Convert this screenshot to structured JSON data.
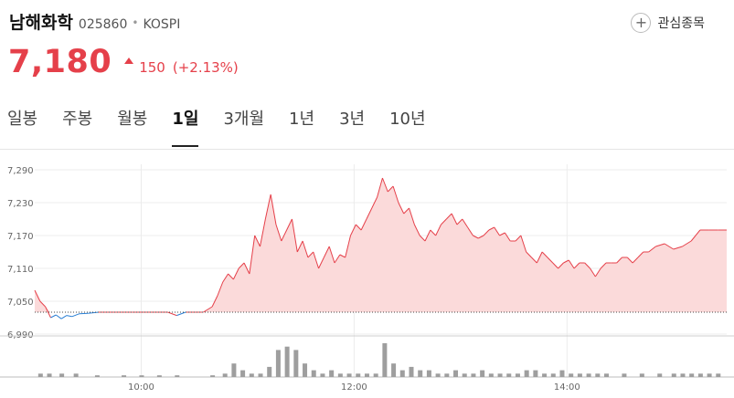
{
  "stock": {
    "name": "남해화학",
    "code": "025860",
    "exchange": "KOSPI",
    "watch_label": "관심종목",
    "price": "7,180",
    "change": "150",
    "change_pct": "(+2.13%)"
  },
  "tabs": [
    "일봉",
    "주봉",
    "월봉",
    "1일",
    "3개월",
    "1년",
    "3년",
    "10년"
  ],
  "active_tab": "1일",
  "colors": {
    "up": "#e5404a",
    "down": "#2a7fd4",
    "area_fill": "#fbdada",
    "volume": "#9e9e9e"
  },
  "chart_data": {
    "type": "area",
    "x_range": [
      "09:00",
      "15:30"
    ],
    "ylim": [
      6990,
      7290
    ],
    "y_ticks": [
      7290,
      7230,
      7170,
      7110,
      7050,
      6990
    ],
    "x_ticks": [
      "10:00",
      "12:00",
      "14:00"
    ],
    "reference_price": 7030,
    "grid": true,
    "series": [
      {
        "points": [
          [
            "09:00",
            7070
          ],
          [
            "09:03",
            7050
          ],
          [
            "09:06",
            7040
          ],
          [
            "09:09",
            7020
          ],
          [
            "09:12",
            7025
          ],
          [
            "09:15",
            7018
          ],
          [
            "09:18",
            7024
          ],
          [
            "09:21",
            7022
          ],
          [
            "09:25",
            7027
          ],
          [
            "09:30",
            7028
          ],
          [
            "09:36",
            7030
          ],
          [
            "09:45",
            7030
          ],
          [
            "09:55",
            7030
          ],
          [
            "10:05",
            7030
          ],
          [
            "10:15",
            7030
          ],
          [
            "10:20",
            7024
          ],
          [
            "10:25",
            7030
          ],
          [
            "10:30",
            7030
          ],
          [
            "10:35",
            7030
          ],
          [
            "10:40",
            7040
          ],
          [
            "10:43",
            7060
          ],
          [
            "10:46",
            7085
          ],
          [
            "10:49",
            7100
          ],
          [
            "10:52",
            7090
          ],
          [
            "10:55",
            7110
          ],
          [
            "10:58",
            7120
          ],
          [
            "11:01",
            7100
          ],
          [
            "11:04",
            7170
          ],
          [
            "11:07",
            7150
          ],
          [
            "11:10",
            7200
          ],
          [
            "11:13",
            7245
          ],
          [
            "11:16",
            7190
          ],
          [
            "11:19",
            7160
          ],
          [
            "11:22",
            7180
          ],
          [
            "11:25",
            7200
          ],
          [
            "11:28",
            7140
          ],
          [
            "11:31",
            7160
          ],
          [
            "11:34",
            7130
          ],
          [
            "11:37",
            7140
          ],
          [
            "11:40",
            7110
          ],
          [
            "11:43",
            7130
          ],
          [
            "11:46",
            7150
          ],
          [
            "11:49",
            7120
          ],
          [
            "11:52",
            7135
          ],
          [
            "11:55",
            7130
          ],
          [
            "11:58",
            7170
          ],
          [
            "12:01",
            7190
          ],
          [
            "12:04",
            7180
          ],
          [
            "12:07",
            7200
          ],
          [
            "12:10",
            7220
          ],
          [
            "12:13",
            7240
          ],
          [
            "12:16",
            7275
          ],
          [
            "12:19",
            7250
          ],
          [
            "12:22",
            7260
          ],
          [
            "12:25",
            7230
          ],
          [
            "12:28",
            7210
          ],
          [
            "12:31",
            7220
          ],
          [
            "12:34",
            7190
          ],
          [
            "12:37",
            7170
          ],
          [
            "12:40",
            7160
          ],
          [
            "12:43",
            7180
          ],
          [
            "12:46",
            7170
          ],
          [
            "12:49",
            7190
          ],
          [
            "12:52",
            7200
          ],
          [
            "12:55",
            7210
          ],
          [
            "12:58",
            7190
          ],
          [
            "13:01",
            7200
          ],
          [
            "13:04",
            7185
          ],
          [
            "13:07",
            7170
          ],
          [
            "13:10",
            7165
          ],
          [
            "13:13",
            7170
          ],
          [
            "13:16",
            7180
          ],
          [
            "13:19",
            7185
          ],
          [
            "13:22",
            7170
          ],
          [
            "13:25",
            7175
          ],
          [
            "13:28",
            7160
          ],
          [
            "13:31",
            7160
          ],
          [
            "13:34",
            7170
          ],
          [
            "13:37",
            7140
          ],
          [
            "13:40",
            7130
          ],
          [
            "13:43",
            7120
          ],
          [
            "13:46",
            7140
          ],
          [
            "13:49",
            7130
          ],
          [
            "13:52",
            7120
          ],
          [
            "13:55",
            7110
          ],
          [
            "13:58",
            7120
          ],
          [
            "14:01",
            7125
          ],
          [
            "14:04",
            7110
          ],
          [
            "14:07",
            7120
          ],
          [
            "14:10",
            7120
          ],
          [
            "14:13",
            7110
          ],
          [
            "14:16",
            7095
          ],
          [
            "14:19",
            7110
          ],
          [
            "14:22",
            7120
          ],
          [
            "14:25",
            7120
          ],
          [
            "14:28",
            7120
          ],
          [
            "14:31",
            7130
          ],
          [
            "14:34",
            7130
          ],
          [
            "14:37",
            7120
          ],
          [
            "14:40",
            7130
          ],
          [
            "14:43",
            7140
          ],
          [
            "14:46",
            7140
          ],
          [
            "14:50",
            7150
          ],
          [
            "14:55",
            7155
          ],
          [
            "15:00",
            7145
          ],
          [
            "15:05",
            7150
          ],
          [
            "15:10",
            7160
          ],
          [
            "15:15",
            7180
          ],
          [
            "15:20",
            7180
          ],
          [
            "15:25",
            7180
          ],
          [
            "15:30",
            7180
          ]
        ]
      }
    ],
    "volume": [
      [
        "09:03",
        1
      ],
      [
        "09:08",
        1
      ],
      [
        "09:15",
        1
      ],
      [
        "09:23",
        1
      ],
      [
        "09:35",
        0.5
      ],
      [
        "09:50",
        0.5
      ],
      [
        "10:00",
        0.5
      ],
      [
        "10:10",
        0.5
      ],
      [
        "10:20",
        0.5
      ],
      [
        "10:40",
        0.5
      ],
      [
        "10:47",
        1
      ],
      [
        "10:52",
        4
      ],
      [
        "10:57",
        2
      ],
      [
        "11:02",
        1
      ],
      [
        "11:07",
        1
      ],
      [
        "11:12",
        3
      ],
      [
        "11:17",
        8
      ],
      [
        "11:22",
        9
      ],
      [
        "11:27",
        8
      ],
      [
        "11:32",
        4
      ],
      [
        "11:37",
        2
      ],
      [
        "11:42",
        1
      ],
      [
        "11:47",
        2
      ],
      [
        "11:52",
        1
      ],
      [
        "11:57",
        1
      ],
      [
        "12:02",
        1
      ],
      [
        "12:07",
        1
      ],
      [
        "12:12",
        1
      ],
      [
        "12:17",
        10
      ],
      [
        "12:22",
        4
      ],
      [
        "12:27",
        2
      ],
      [
        "12:32",
        3
      ],
      [
        "12:37",
        2
      ],
      [
        "12:42",
        2
      ],
      [
        "12:47",
        1
      ],
      [
        "12:52",
        1
      ],
      [
        "12:57",
        2
      ],
      [
        "13:02",
        1
      ],
      [
        "13:07",
        1
      ],
      [
        "13:12",
        2
      ],
      [
        "13:17",
        1
      ],
      [
        "13:22",
        1
      ],
      [
        "13:27",
        1
      ],
      [
        "13:32",
        1
      ],
      [
        "13:37",
        2
      ],
      [
        "13:42",
        2
      ],
      [
        "13:47",
        1
      ],
      [
        "13:52",
        1
      ],
      [
        "13:57",
        2
      ],
      [
        "14:02",
        1
      ],
      [
        "14:07",
        1
      ],
      [
        "14:12",
        1
      ],
      [
        "14:17",
        1
      ],
      [
        "14:22",
        1
      ],
      [
        "14:32",
        1
      ],
      [
        "14:42",
        1
      ],
      [
        "14:52",
        1
      ],
      [
        "15:00",
        1
      ],
      [
        "15:05",
        1
      ],
      [
        "15:10",
        1
      ],
      [
        "15:15",
        1
      ],
      [
        "15:20",
        1
      ],
      [
        "15:25",
        1
      ]
    ]
  }
}
